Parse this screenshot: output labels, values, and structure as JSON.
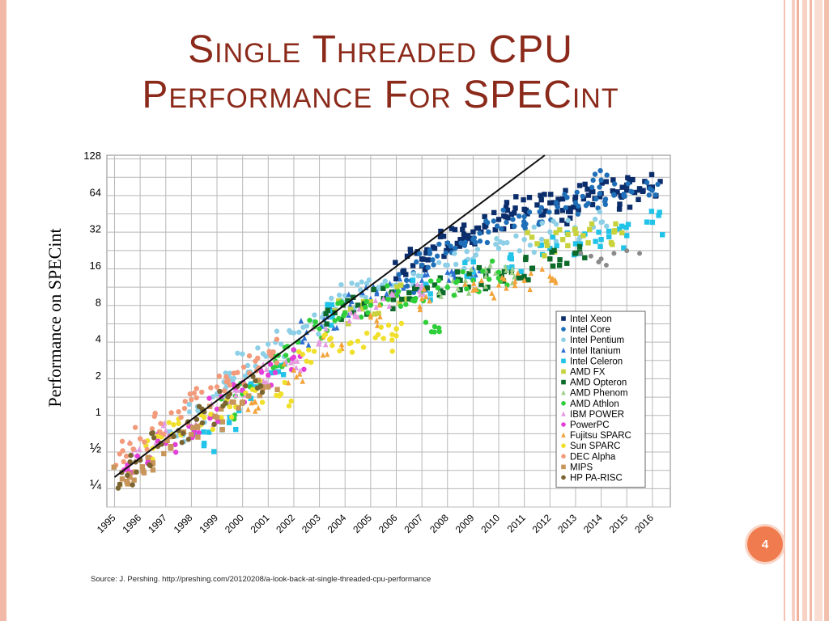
{
  "slide": {
    "title_line1": "Single Threaded CPU",
    "title_line2": "Performance For SPECint",
    "page_number": "4",
    "source": "Source: J. Pershing. http://preshing.com/20120208/a-look-back-at-single-threaded-cpu-performance"
  },
  "colors": {
    "title": "#8b2a1a",
    "badge": "#f07b4e",
    "frame": "#f3b9a8"
  },
  "chart_data": {
    "type": "scatter",
    "ylabel": "Performance on SPECint",
    "y_scale": "log2",
    "ylim": [
      0.25,
      128
    ],
    "xlim": [
      1995,
      2016
    ],
    "x_ticks": [
      "1995",
      "1996",
      "1997",
      "1998",
      "1999",
      "2000",
      "2001",
      "2002",
      "2003",
      "2004",
      "2005",
      "2006",
      "2007",
      "2008",
      "2009",
      "2010",
      "2011",
      "2012",
      "2013",
      "2014",
      "2015",
      "2016"
    ],
    "y_ticks": [
      {
        "label": "128",
        "value": 128
      },
      {
        "label": "64",
        "value": 64
      },
      {
        "label": "32",
        "value": 32
      },
      {
        "label": "16",
        "value": 16
      },
      {
        "label": "8",
        "value": 8
      },
      {
        "label": "4",
        "value": 4
      },
      {
        "label": "2",
        "value": 2
      },
      {
        "label": "1",
        "value": 1
      },
      {
        "label": "½",
        "value": 0.5
      },
      {
        "label": "¼",
        "value": 0.25
      }
    ],
    "grid": true,
    "legend_position": "bottom-right",
    "trend_line": [
      [
        1995,
        0.29
      ],
      [
        2011.8,
        128
      ]
    ],
    "series": [
      {
        "name": "Intel Xeon",
        "color": "#0b2d6b",
        "marker": "square",
        "points": [
          [
            2006.3,
            14
          ],
          [
            2007.0,
            18
          ],
          [
            2007.5,
            22
          ],
          [
            2008.0,
            24
          ],
          [
            2008.5,
            26
          ],
          [
            2009.0,
            30
          ],
          [
            2009.5,
            34
          ],
          [
            2010.0,
            38
          ],
          [
            2010.5,
            42
          ],
          [
            2011.0,
            46
          ],
          [
            2011.5,
            50
          ],
          [
            2012.0,
            52
          ],
          [
            2012.5,
            56
          ],
          [
            2013.0,
            58
          ],
          [
            2013.5,
            60
          ],
          [
            2014.0,
            62
          ],
          [
            2014.5,
            64
          ],
          [
            2015.0,
            66
          ],
          [
            2015.5,
            68
          ],
          [
            2016.0,
            70
          ],
          [
            2006.8,
            20
          ],
          [
            2008.8,
            28
          ],
          [
            2012.8,
            44
          ],
          [
            2014.8,
            58
          ]
        ]
      },
      {
        "name": "Intel Core",
        "color": "#1f6fb8",
        "marker": "circle",
        "points": [
          [
            2006.4,
            12
          ],
          [
            2007.0,
            16
          ],
          [
            2007.6,
            19
          ],
          [
            2008.3,
            22
          ],
          [
            2009.0,
            26
          ],
          [
            2009.6,
            30
          ],
          [
            2010.3,
            36
          ],
          [
            2011.0,
            40
          ],
          [
            2011.6,
            44
          ],
          [
            2012.3,
            48
          ],
          [
            2013.0,
            52
          ],
          [
            2013.8,
            56
          ],
          [
            2014.5,
            60
          ],
          [
            2015.2,
            64
          ],
          [
            2015.9,
            68
          ],
          [
            2014.0,
            80
          ]
        ]
      },
      {
        "name": "Intel Pentium",
        "color": "#8ccfe6",
        "marker": "circle",
        "points": [
          [
            1997.5,
            0.7
          ],
          [
            1998.3,
            1.0
          ],
          [
            1999.0,
            1.4
          ],
          [
            1999.6,
            1.8
          ],
          [
            2000.2,
            2.4
          ],
          [
            2000.8,
            3.0
          ],
          [
            2001.5,
            3.6
          ],
          [
            2002.2,
            4.5
          ],
          [
            2002.8,
            5.5
          ],
          [
            2003.4,
            7.5
          ],
          [
            2004.0,
            9.0
          ],
          [
            2004.6,
            10
          ],
          [
            2005.3,
            10.5
          ],
          [
            2006.0,
            11
          ],
          [
            2007.0,
            13
          ],
          [
            2008.0,
            16
          ],
          [
            2009.0,
            18
          ],
          [
            2010.0,
            22
          ],
          [
            2011.0,
            26
          ],
          [
            2012.0,
            30
          ],
          [
            2013.0,
            32
          ],
          [
            2014.0,
            36
          ]
        ]
      },
      {
        "name": "Intel Itanium",
        "color": "#2f6fd0",
        "marker": "triangle",
        "points": [
          [
            2002.5,
            4.5
          ],
          [
            2003.3,
            6.0
          ],
          [
            2004.2,
            7.5
          ],
          [
            2005.0,
            8.5
          ],
          [
            2006.0,
            10
          ],
          [
            2007.0,
            12
          ],
          [
            2008.0,
            14
          ],
          [
            2009.0,
            15
          ]
        ]
      },
      {
        "name": "Intel Celeron",
        "color": "#22c3e8",
        "marker": "square",
        "points": [
          [
            1998.5,
            0.55
          ],
          [
            1999.5,
            0.9
          ],
          [
            2000.5,
            1.6
          ],
          [
            2001.5,
            2.4
          ],
          [
            2003.5,
            6.0
          ],
          [
            2007.0,
            10
          ],
          [
            2009.0,
            14
          ],
          [
            2010.5,
            18
          ],
          [
            2012.0,
            22
          ],
          [
            2013.0,
            24
          ],
          [
            2014.0,
            26
          ],
          [
            2015.0,
            28
          ],
          [
            2016.0,
            36
          ]
        ]
      },
      {
        "name": "AMD FX",
        "color": "#c7d23c",
        "marker": "square",
        "points": [
          [
            2004.0,
            6.5
          ],
          [
            2005.0,
            8.0
          ],
          [
            2006.0,
            9.0
          ],
          [
            2011.5,
            24
          ],
          [
            2012.5,
            26
          ],
          [
            2013.3,
            28
          ],
          [
            2014.5,
            30
          ]
        ]
      },
      {
        "name": "AMD Opteron",
        "color": "#0d6b2a",
        "marker": "square",
        "points": [
          [
            2003.6,
            6.5
          ],
          [
            2004.5,
            7.5
          ],
          [
            2005.5,
            8.5
          ],
          [
            2006.5,
            9.5
          ],
          [
            2007.5,
            11
          ],
          [
            2008.5,
            12
          ],
          [
            2009.5,
            13
          ],
          [
            2010.5,
            14
          ],
          [
            2011.3,
            15
          ],
          [
            2012.0,
            18
          ],
          [
            2013.0,
            20
          ]
        ]
      },
      {
        "name": "AMD Phenom",
        "color": "#9ed08a",
        "marker": "triangle",
        "points": [
          [
            2008.0,
            11
          ],
          [
            2008.7,
            12
          ],
          [
            2009.5,
            13
          ],
          [
            2010.3,
            14.5
          ]
        ]
      },
      {
        "name": "AMD Athlon",
        "color": "#2fcf3a",
        "marker": "circle",
        "points": [
          [
            1999.5,
            1.1
          ],
          [
            2000.3,
            1.6
          ],
          [
            2001.2,
            2.3
          ],
          [
            2002.0,
            3.2
          ],
          [
            2003.0,
            4.8
          ],
          [
            2004.0,
            6.5
          ],
          [
            2005.0,
            7.5
          ],
          [
            2006.0,
            9.0
          ],
          [
            2007.0,
            9.5
          ],
          [
            2008.0,
            10.5
          ],
          [
            2009.0,
            12
          ],
          [
            2010.0,
            14
          ],
          [
            2007.5,
            5.0
          ]
        ]
      },
      {
        "name": "IBM POWER",
        "color": "#e59ae0",
        "marker": "triangle",
        "points": [
          [
            1995.7,
            0.45
          ],
          [
            1997.0,
            0.7
          ],
          [
            1998.5,
            1.0
          ],
          [
            1999.8,
            1.5
          ],
          [
            2001.0,
            2.0
          ],
          [
            2002.0,
            2.6
          ],
          [
            2003.0,
            3.8
          ],
          [
            2004.5,
            6.0
          ],
          [
            2005.5,
            8.5
          ],
          [
            2007.0,
            11
          ]
        ]
      },
      {
        "name": "PowerPC",
        "color": "#e33fd8",
        "marker": "circle",
        "points": [
          [
            1995.5,
            0.35
          ],
          [
            1996.3,
            0.42
          ],
          [
            1997.0,
            0.55
          ],
          [
            1998.0,
            0.75
          ],
          [
            1999.0,
            1.05
          ],
          [
            2000.0,
            1.5
          ],
          [
            2001.0,
            2.0
          ],
          [
            2002.0,
            2.8
          ]
        ]
      },
      {
        "name": "Fujitsu SPARC",
        "color": "#f2a33a",
        "marker": "triangle",
        "points": [
          [
            2000.5,
            1.2
          ],
          [
            2002.0,
            2.2
          ],
          [
            2003.5,
            3.6
          ],
          [
            2005.0,
            6.0
          ],
          [
            2007.0,
            8.5
          ],
          [
            2009.0,
            10
          ],
          [
            2010.0,
            11
          ],
          [
            2011.0,
            12
          ],
          [
            2012.0,
            13
          ]
        ]
      },
      {
        "name": "Sun SPARC",
        "color": "#f0e02c",
        "marker": "circle",
        "points": [
          [
            1996.5,
            0.5
          ],
          [
            1997.5,
            0.8
          ],
          [
            1998.5,
            0.9
          ],
          [
            1999.5,
            1.1
          ],
          [
            2000.5,
            1.5
          ],
          [
            2001.5,
            1.4
          ],
          [
            2002.5,
            2.6
          ],
          [
            2003.5,
            3.5
          ],
          [
            2004.5,
            3.8
          ],
          [
            2005.5,
            4.0
          ],
          [
            2006.0,
            4.2
          ]
        ]
      },
      {
        "name": "DEC Alpha",
        "color": "#f29a7a",
        "marker": "circle",
        "points": [
          [
            1995.2,
            0.45
          ],
          [
            1996.0,
            0.6
          ],
          [
            1996.8,
            0.8
          ],
          [
            1997.5,
            1.0
          ],
          [
            1998.2,
            1.3
          ],
          [
            1999.0,
            1.6
          ],
          [
            1999.8,
            2.1
          ],
          [
            2000.5,
            2.6
          ],
          [
            2001.2,
            3.1
          ]
        ]
      },
      {
        "name": "MIPS",
        "color": "#c8955a",
        "marker": "square",
        "points": [
          [
            1995.3,
            0.28
          ],
          [
            1995.8,
            0.32
          ],
          [
            1996.5,
            0.38
          ],
          [
            1997.2,
            0.5
          ],
          [
            1998.0,
            0.65
          ],
          [
            1999.0,
            0.9
          ],
          [
            2000.0,
            1.2
          ],
          [
            2001.0,
            1.6
          ]
        ]
      },
      {
        "name": "HP PA-RISC",
        "color": "#7a6430",
        "marker": "circle",
        "points": [
          [
            1995.5,
            0.3
          ],
          [
            1996.0,
            0.4
          ],
          [
            1996.8,
            0.55
          ],
          [
            1997.5,
            0.7
          ],
          [
            1998.5,
            1.0
          ],
          [
            1999.5,
            1.4
          ],
          [
            2000.5,
            1.8
          ]
        ]
      }
    ],
    "extra_points": {
      "color": "#8a8a8a",
      "points": [
        [
          2013.2,
          20
        ],
        [
          2013.6,
          19
        ],
        [
          2014.0,
          18
        ],
        [
          2014.5,
          20
        ],
        [
          2015.0,
          21
        ],
        [
          2015.5,
          20
        ],
        [
          2014.2,
          16
        ],
        [
          2013.9,
          17
        ]
      ]
    }
  }
}
